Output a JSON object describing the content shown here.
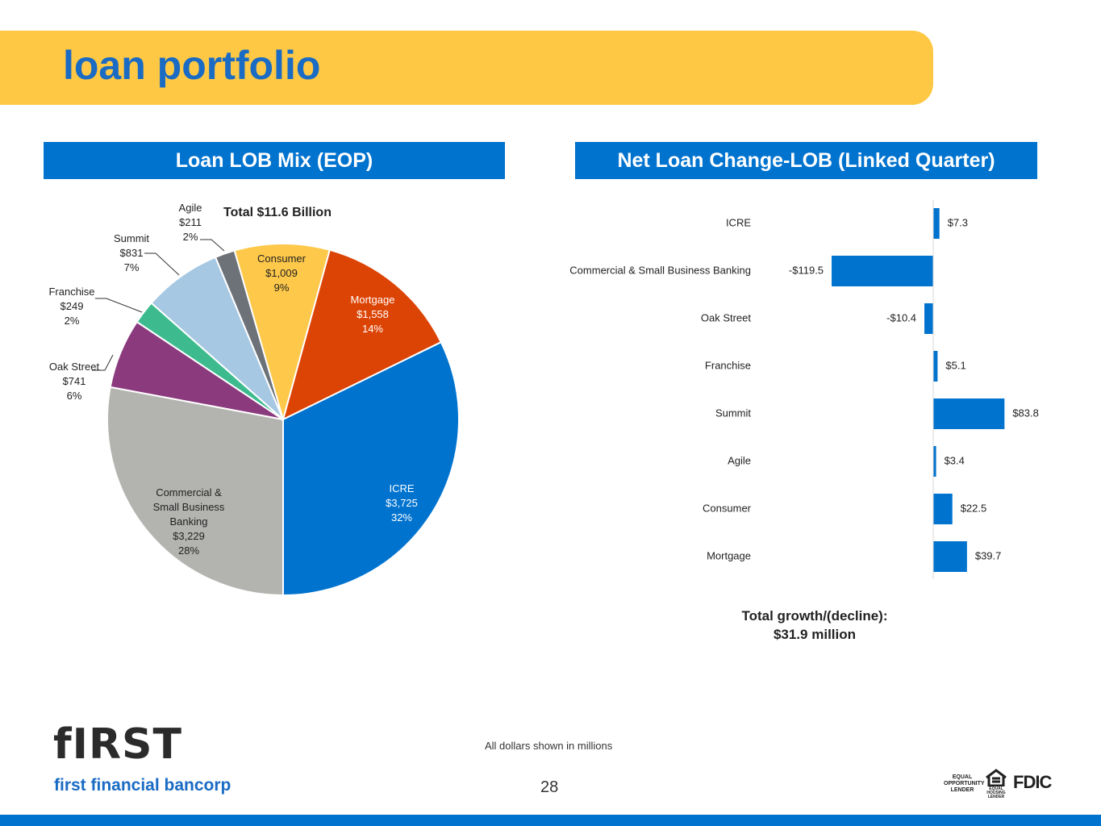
{
  "header": {
    "title": "loan portfolio"
  },
  "chart_data": [
    {
      "type": "pie",
      "title": "Loan LOB Mix (EOP)",
      "subtitle": "Total $11.6 Billion",
      "categories": [
        "Commercial & Small Business Banking",
        "Oak Street",
        "Franchise",
        "Summit",
        "Agile",
        "Consumer",
        "Mortgage",
        "ICRE"
      ],
      "values": [
        3229,
        741,
        249,
        831,
        211,
        1009,
        1558,
        3725
      ],
      "value_labels": [
        "$3,229",
        "$741",
        "$249",
        "$831",
        "$211",
        "$1,009",
        "$1,558",
        "$3,725"
      ],
      "shares": [
        28,
        6,
        2,
        7,
        2,
        9,
        14,
        32
      ],
      "share_labels": [
        "28%",
        "6%",
        "2%",
        "7%",
        "2%",
        "9%",
        "14%",
        "32%"
      ],
      "colors": [
        "#b3b3b0",
        "#8b3a7e",
        "#3dbb8e",
        "#a6c8e3",
        "#6d7278",
        "#fec84a",
        "#dc4405",
        "#0073cf"
      ]
    },
    {
      "type": "bar",
      "orientation": "horizontal",
      "title": "Net Loan Change-LOB (Linked Quarter)",
      "categories": [
        "ICRE",
        "Commercial & Small Business Banking",
        "Oak Street",
        "Franchise",
        "Summit",
        "Agile",
        "Consumer",
        "Mortgage"
      ],
      "values": [
        7.3,
        -119.5,
        -10.4,
        5.1,
        83.8,
        3.4,
        22.5,
        39.7
      ],
      "value_labels": [
        "$7.3",
        "-$119.5",
        "-$10.4",
        "$5.1",
        "$83.8",
        "$3.4",
        "$22.5",
        "$39.7"
      ],
      "color": "#0073cf",
      "annotations": [
        "Total growth/(decline):",
        "$31.9 million"
      ]
    }
  ],
  "footer": {
    "note": "All dollars shown in millions",
    "page": "28",
    "logo": "fIRST",
    "company": "first financial bancorp",
    "badges": [
      "EQUAL OPPORTUNITY LENDER",
      "EQUAL HOUSING LENDER",
      "FDIC"
    ]
  }
}
